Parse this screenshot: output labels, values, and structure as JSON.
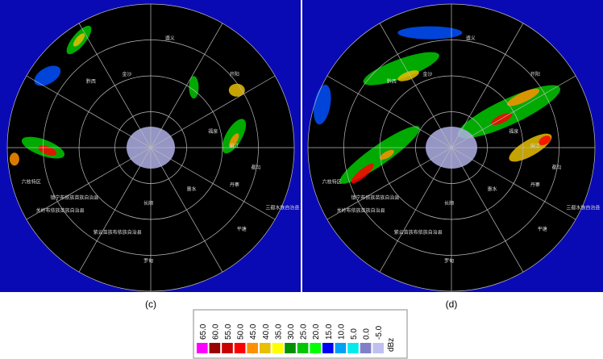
{
  "panels": [
    {
      "label": "(c)",
      "places": [
        "遵义",
        "金沙",
        "黔西",
        "开阳",
        "福泉",
        "麻江",
        "都匀",
        "丹寨",
        "长顺",
        "平塘",
        "三都水族自治县",
        "惠水",
        "罗甸",
        "六枝特区",
        "镇宁布依族苗族自治县",
        "关岭布依族苗族自治县",
        "紫云苗族布依族自治县"
      ]
    },
    {
      "label": "(d)",
      "places": [
        "遵义",
        "金沙",
        "黔西",
        "开阳",
        "福泉",
        "麻江",
        "都匀",
        "丹寨",
        "长顺",
        "平塘",
        "三都水族自治县",
        "惠水",
        "罗甸",
        "六枝特区",
        "镇宁布依族苗族自治县",
        "关岭布依族苗族自治县",
        "紫云苗族布依族自治县"
      ]
    }
  ],
  "colorbar": {
    "unit": "dBz",
    "labels": [
      "65.0",
      "60.0",
      "55.0",
      "50.0",
      "45.0",
      "40.0",
      "35.0",
      "30.0",
      "25.0",
      "20.0",
      "15.0",
      "10.0",
      "5.0",
      "0.0",
      "-5.0"
    ],
    "colors": [
      "#ff00ff",
      "#990000",
      "#c80000",
      "#ff0000",
      "#ff9000",
      "#e8c000",
      "#ffff00",
      "#009000",
      "#00c800",
      "#00ff00",
      "#0000f6",
      "#00a0f6",
      "#00ecec",
      "#8080c8",
      "#c0c0f0"
    ]
  }
}
